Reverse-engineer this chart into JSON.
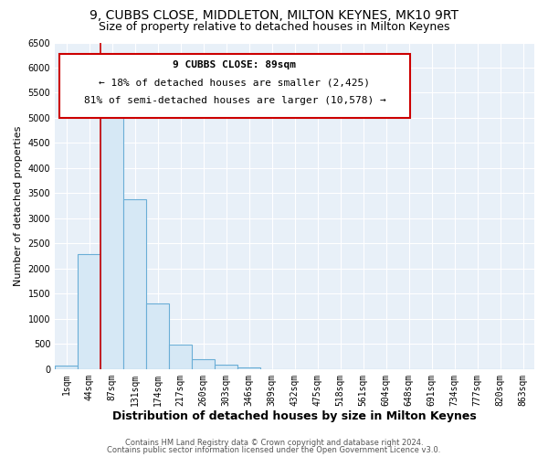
{
  "title": "9, CUBBS CLOSE, MIDDLETON, MILTON KEYNES, MK10 9RT",
  "subtitle": "Size of property relative to detached houses in Milton Keynes",
  "xlabel": "Distribution of detached houses by size in Milton Keynes",
  "ylabel": "Number of detached properties",
  "bar_color": "#d6e8f5",
  "bar_edge_color": "#6aaed6",
  "bg_color": "#ffffff",
  "plot_bg_color": "#e8f0f8",
  "grid_color": "#ffffff",
  "categories": [
    "1sqm",
    "44sqm",
    "87sqm",
    "131sqm",
    "174sqm",
    "217sqm",
    "260sqm",
    "303sqm",
    "346sqm",
    "389sqm",
    "432sqm",
    "475sqm",
    "518sqm",
    "561sqm",
    "604sqm",
    "648sqm",
    "691sqm",
    "734sqm",
    "777sqm",
    "820sqm",
    "863sqm"
  ],
  "values": [
    70,
    2280,
    5450,
    3380,
    1310,
    480,
    190,
    90,
    30,
    5,
    2,
    1,
    0,
    0,
    0,
    0,
    0,
    0,
    0,
    0,
    0
  ],
  "ylim": [
    0,
    6500
  ],
  "yticks": [
    0,
    500,
    1000,
    1500,
    2000,
    2500,
    3000,
    3500,
    4000,
    4500,
    5000,
    5500,
    6000,
    6500
  ],
  "property_line_color": "#cc0000",
  "annotation_text_line1": "9 CUBBS CLOSE: 89sqm",
  "annotation_text_line2": "← 18% of detached houses are smaller (2,425)",
  "annotation_text_line3": "81% of semi-detached houses are larger (10,578) →",
  "annotation_box_color": "#ffffff",
  "annotation_border_color": "#cc0000",
  "footer_line1": "Contains HM Land Registry data © Crown copyright and database right 2024.",
  "footer_line2": "Contains public sector information licensed under the Open Government Licence v3.0.",
  "title_fontsize": 10,
  "subtitle_fontsize": 9,
  "xlabel_fontsize": 9,
  "ylabel_fontsize": 8,
  "tick_fontsize": 7,
  "annotation_fontsize": 8,
  "footer_fontsize": 6
}
